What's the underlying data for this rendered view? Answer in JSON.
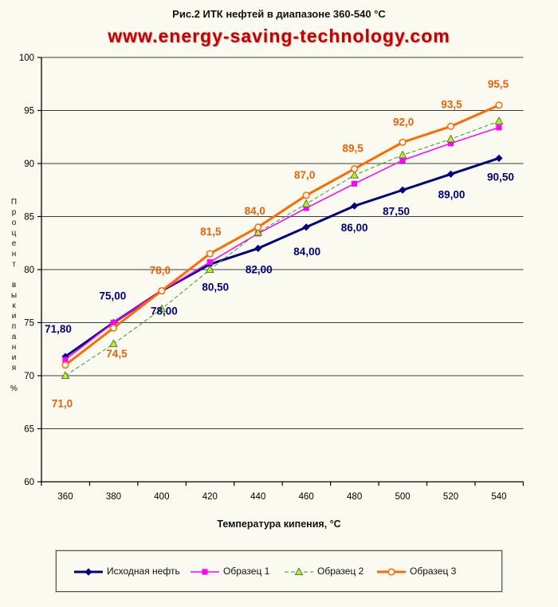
{
  "page": {
    "background": "#fbfaf0"
  },
  "title": "Рис.2 ИТК нефтей в диапазоне 360-540 °С",
  "watermark": {
    "text": "www.energy-saving-technology.com",
    "color": "#c40000"
  },
  "chart_data": {
    "type": "line",
    "x": [
      360,
      380,
      400,
      420,
      440,
      460,
      480,
      500,
      520,
      540
    ],
    "xlabel": "Температура кипения, °С",
    "ylabel": "Процент выкипания %",
    "ylim": [
      60,
      100
    ],
    "yticks": [
      60,
      65,
      70,
      75,
      80,
      85,
      90,
      95,
      100
    ],
    "grid": "horizontal",
    "legend_position": "bottom",
    "series": [
      {
        "name": "Исходная нефть",
        "color": "#00007e",
        "marker": "diamond",
        "line_width": 3,
        "line_dash": "",
        "values": [
          71.8,
          75.0,
          78.0,
          80.5,
          82.0,
          84.0,
          86.0,
          87.5,
          89.0,
          90.5
        ],
        "labels": [
          "71,80",
          "75,00",
          "78,00",
          "80,50",
          "82,00",
          "84,00",
          "86,00",
          "87,50",
          "89,00",
          "90,50"
        ],
        "label_color": "#00007e",
        "label_offsets": [
          [
            -9,
            -34
          ],
          [
            -1,
            -33
          ],
          [
            3,
            26
          ],
          [
            7,
            29
          ],
          [
            1,
            27
          ],
          [
            1,
            31
          ],
          [
            0,
            28
          ],
          [
            -8,
            27
          ],
          [
            1,
            26
          ],
          [
            2,
            24
          ]
        ]
      },
      {
        "name": "Образец 1",
        "color": "#ff00ff",
        "marker": "square",
        "line_width": 1.5,
        "line_dash": "",
        "values": [
          71.5,
          75.0,
          78.0,
          80.7,
          83.4,
          85.8,
          88.1,
          90.3,
          91.9,
          93.4
        ],
        "labels": [],
        "label_color": "#ff00ff",
        "label_offsets": []
      },
      {
        "name": "Образец 2",
        "color": "#2e9e2e",
        "marker": "triangle",
        "line_width": 1,
        "line_dash": "5 3",
        "values": [
          70.0,
          73.0,
          76.3,
          80.0,
          83.5,
          86.2,
          88.9,
          90.8,
          92.3,
          94.0
        ],
        "labels": [],
        "label_color": "#2e9e2e",
        "label_offsets": []
      },
      {
        "name": "Образец 3",
        "color": "#ff6a00",
        "marker": "circle-open",
        "line_width": 3,
        "line_dash": "",
        "values": [
          71.0,
          74.5,
          78.0,
          81.5,
          84.0,
          87.0,
          89.5,
          92.0,
          93.5,
          95.5
        ],
        "labels": [
          "71,0",
          "74,5",
          "78,0",
          "81,5",
          "84,0",
          "87,0",
          "89,5",
          "92,0",
          "93,5",
          "95,5"
        ],
        "label_color": "#e8620a",
        "label_offsets": [
          [
            -4,
            49
          ],
          [
            4,
            33
          ],
          [
            -2,
            -25
          ],
          [
            1,
            -27
          ],
          [
            -4,
            -20
          ],
          [
            -2,
            -25
          ],
          [
            -2,
            -25
          ],
          [
            1,
            -25
          ],
          [
            1,
            -27
          ],
          [
            -1,
            -26
          ]
        ]
      }
    ]
  }
}
